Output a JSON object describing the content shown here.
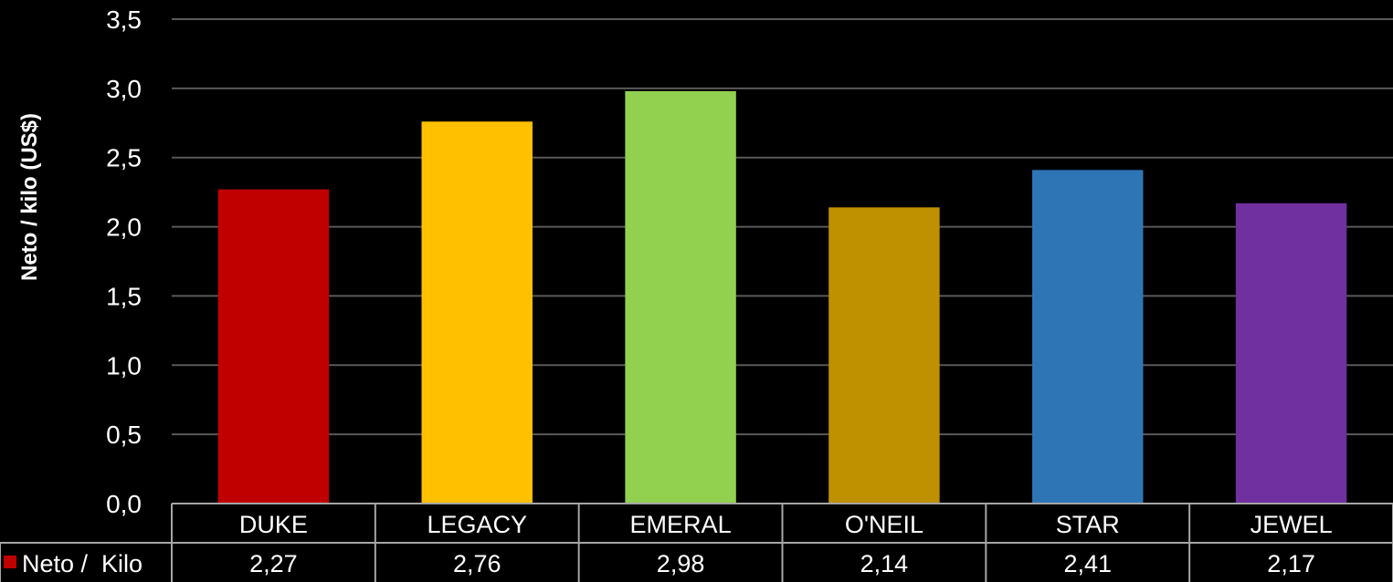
{
  "chart_data": {
    "type": "bar",
    "ylabel": "Neto / kilo (US$)",
    "ylim": [
      0,
      3.5
    ],
    "yticks": [
      "0,0",
      "0,5",
      "1,0",
      "1,5",
      "2,0",
      "2,5",
      "3,0",
      "3,5"
    ],
    "ytick_values": [
      0,
      0.5,
      1.0,
      1.5,
      2.0,
      2.5,
      3.0,
      3.5
    ],
    "grid": true,
    "legend_position": "data-table-left",
    "categories": [
      "DUKE",
      "LEGACY",
      "EMERAL",
      "O'NEIL",
      "STAR",
      "JEWEL"
    ],
    "series": [
      {
        "name": "Neto /  Kilo",
        "legend_color": "#c00000",
        "values": [
          2.27,
          2.76,
          2.98,
          2.14,
          2.41,
          2.17
        ],
        "value_labels": [
          "2,27",
          "2,76",
          "2,98",
          "2,14",
          "2,41",
          "2,17"
        ],
        "colors": [
          "#c00000",
          "#ffc000",
          "#92d050",
          "#bf9000",
          "#2e75b6",
          "#7030a0"
        ]
      }
    ],
    "gridline_color": "#595959",
    "table_border_color": "#a6a6a6"
  }
}
